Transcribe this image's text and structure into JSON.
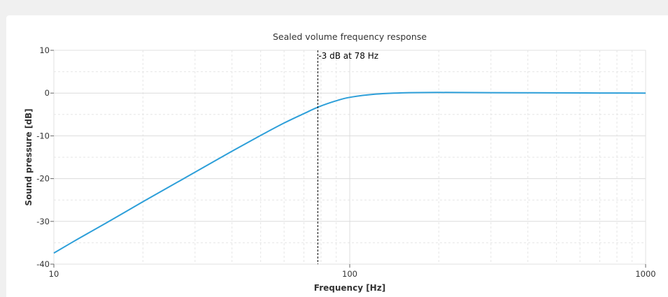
{
  "chart_data": {
    "type": "line",
    "title": "Sealed volume frequency response",
    "xlabel": "Frequency [Hz]",
    "ylabel": "Sound pressure [dB]",
    "x_scale": "log",
    "xlim": [
      10,
      1000
    ],
    "ylim": [
      -40,
      10
    ],
    "x_ticks": [
      {
        "value": 10,
        "label": "10"
      },
      {
        "value": 100,
        "label": "100"
      },
      {
        "value": 1000,
        "label": "1000"
      }
    ],
    "y_ticks": [
      {
        "value": 10,
        "label": "10"
      },
      {
        "value": 0,
        "label": "0"
      },
      {
        "value": -10,
        "label": "-10"
      },
      {
        "value": -20,
        "label": "-20"
      },
      {
        "value": -30,
        "label": "-30"
      },
      {
        "value": -40,
        "label": "-40"
      }
    ],
    "grid": true,
    "line_color": "#2d9fd9",
    "series": [
      {
        "x": [
          10,
          12,
          15,
          20,
          25,
          30,
          40,
          50,
          60,
          70,
          78,
          90,
          100,
          120,
          150,
          200,
          300,
          500,
          700,
          1000
        ],
        "y": [
          -37.4,
          -34.2,
          -30.4,
          -25.4,
          -21.6,
          -18.5,
          -13.6,
          -9.9,
          -7.0,
          -4.8,
          -3.3,
          -1.8,
          -1.0,
          -0.3,
          0.05,
          0.15,
          0.1,
          0.05,
          0.02,
          0.0
        ]
      }
    ],
    "annotations": [
      {
        "x": 78,
        "text": "-3 dB at 78 Hz"
      }
    ]
  }
}
